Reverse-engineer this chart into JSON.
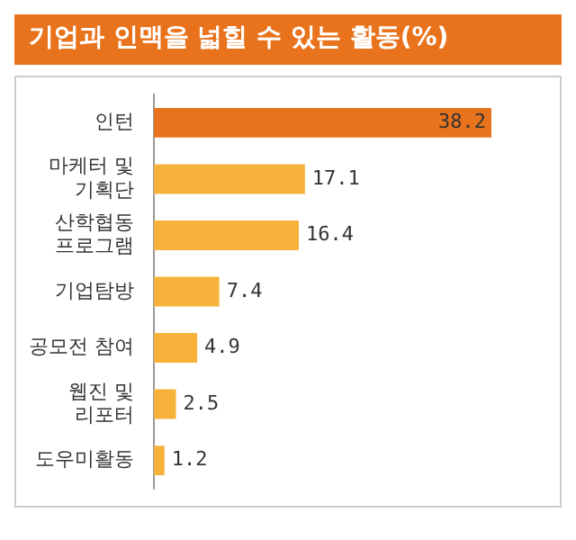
{
  "chart_data": {
    "type": "bar",
    "orientation": "horizontal",
    "title": "기업과 인맥을 넓힐 수 있는 활동(%)",
    "categories": [
      "인턴",
      "마케터 및\n기획단",
      "산학협동\n프로그램",
      "기업탐방",
      "공모전 참여",
      "웹진 및\n리포터",
      "도우미활동"
    ],
    "values": [
      38.2,
      17.1,
      16.4,
      7.4,
      4.9,
      2.5,
      1.2
    ],
    "colors": [
      "#e8731c",
      "#f7b23b",
      "#f7b23b",
      "#f7b23b",
      "#f7b23b",
      "#f7b23b",
      "#f7b23b"
    ],
    "data_labels": true
  }
}
